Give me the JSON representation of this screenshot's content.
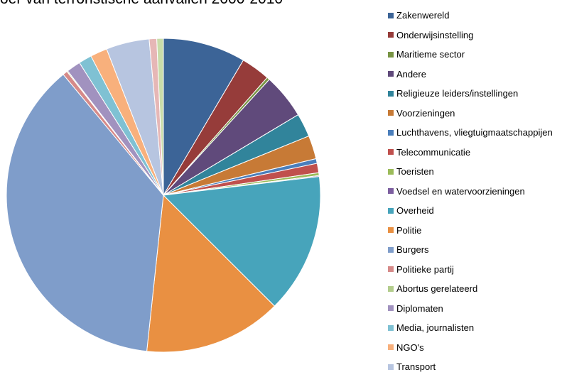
{
  "chart_data": {
    "type": "pie",
    "title": "oer van terroristische aanvallen 2000-2010",
    "slices": [
      {
        "label": "Zakenwereld",
        "value": 8.8,
        "color": "#3c6497"
      },
      {
        "label": "Onderwijsinstelling",
        "value": 3.1,
        "color": "#963c3a"
      },
      {
        "label": "Maritieme sector",
        "value": 0.3,
        "color": "#789444"
      },
      {
        "label": "Andere",
        "value": 4.8,
        "color": "#604a7b"
      },
      {
        "label": "Religieuze leiders/instellingen",
        "value": 2.5,
        "color": "#31849b"
      },
      {
        "label": "Voorzieningen",
        "value": 2.5,
        "color": "#c77a36"
      },
      {
        "label": "Luchthavens, vliegtuigmaatschappijen",
        "value": 0.5,
        "color": "#4a7ebb"
      },
      {
        "label": "Telecommunicatie",
        "value": 1.0,
        "color": "#c0504d"
      },
      {
        "label": "Toeristen",
        "value": 0.3,
        "color": "#9bbb59"
      },
      {
        "label": "Voedsel en watervoorzieningen",
        "value": 0.1,
        "color": "#7d5fa0"
      },
      {
        "label": "Overheid",
        "value": 14.9,
        "color": "#47a4bb"
      },
      {
        "label": "Politie",
        "value": 14.7,
        "color": "#e99042"
      },
      {
        "label": "Burgers",
        "value": 38.6,
        "color": "#7f9dca"
      },
      {
        "label": "Politieke partij",
        "value": 0.5,
        "color": "#d68a89"
      },
      {
        "label": "Abortus gerelateerd",
        "value": 0.1,
        "color": "#b3cd8c"
      },
      {
        "label": "Diplomaten",
        "value": 1.5,
        "color": "#a192bf"
      },
      {
        "label": "Media, journalisten",
        "value": 1.4,
        "color": "#7fc1d3"
      },
      {
        "label": "NGO's",
        "value": 1.8,
        "color": "#f8b07c"
      },
      {
        "label": "Transport",
        "value": 4.6,
        "color": "#b7c5e0"
      },
      {
        "label": "",
        "value": 0.8,
        "color": "#e6b7b6"
      },
      {
        "label": "",
        "value": 0.7,
        "color": "#c9dca9"
      }
    ]
  }
}
